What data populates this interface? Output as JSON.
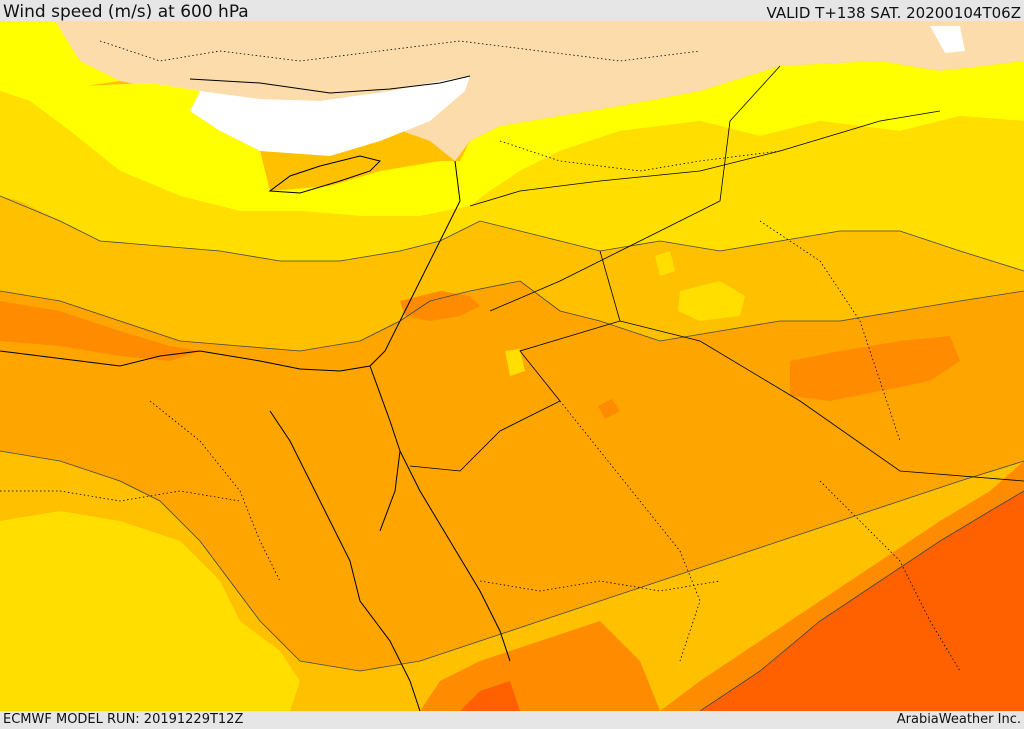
{
  "header": {
    "title": "Wind speed (m/s) at 600 hPa",
    "valid": "VALID T+138 SAT. 20200104T06Z"
  },
  "footer": {
    "model_run": "ECMWF MODEL RUN: 20191229T12Z",
    "credit": "ArabiaWeather Inc."
  },
  "colors": {
    "land": "#fbdcaa",
    "white": "#ffffff",
    "yellow_bright": "#ffff00",
    "yellow": "#ffde00",
    "gold": "#ffc000",
    "orange_light": "#ffa500",
    "orange": "#ff8c00",
    "orange_dark": "#ff6000"
  }
}
